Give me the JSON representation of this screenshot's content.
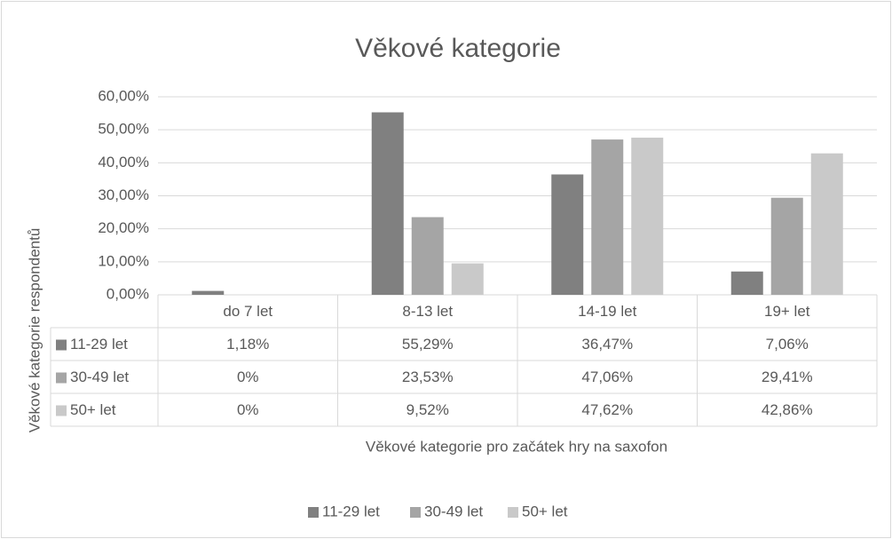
{
  "chart_data": {
    "type": "bar",
    "title": "Věkové kategorie",
    "y_label": "Věkové kategorie respondentů",
    "x_label": "Věkové kategorie pro začátek hry na saxofon",
    "categories": [
      "do 7 let",
      "8-13 let",
      "14-19 let",
      "19+ let"
    ],
    "series": [
      {
        "name": "11-29 let",
        "color": "#808080",
        "values": [
          1.18,
          55.29,
          36.47,
          7.06
        ],
        "value_labels": [
          "1,18%",
          "55,29%",
          "36,47%",
          "7,06%"
        ]
      },
      {
        "name": "30-49 let",
        "color": "#a5a5a5",
        "values": [
          0,
          23.53,
          47.06,
          29.41
        ],
        "value_labels": [
          "0%",
          "23,53%",
          "47,06%",
          "29,41%"
        ]
      },
      {
        "name": "50+ let",
        "color": "#c9c9c9",
        "values": [
          0,
          9.52,
          47.62,
          42.86
        ],
        "value_labels": [
          "0%",
          "9,52%",
          "47,62%",
          "42,86%"
        ]
      }
    ],
    "ylim": [
      0,
      60
    ],
    "yticks": [
      {
        "value": 0,
        "label": "0,00%"
      },
      {
        "value": 10,
        "label": "10,00%"
      },
      {
        "value": 20,
        "label": "20,00%"
      },
      {
        "value": 30,
        "label": "30,00%"
      },
      {
        "value": 40,
        "label": "40,00%"
      },
      {
        "value": 50,
        "label": "50,00%"
      },
      {
        "value": 60,
        "label": "60,00%"
      }
    ],
    "grid": true,
    "legend": "bottom"
  }
}
